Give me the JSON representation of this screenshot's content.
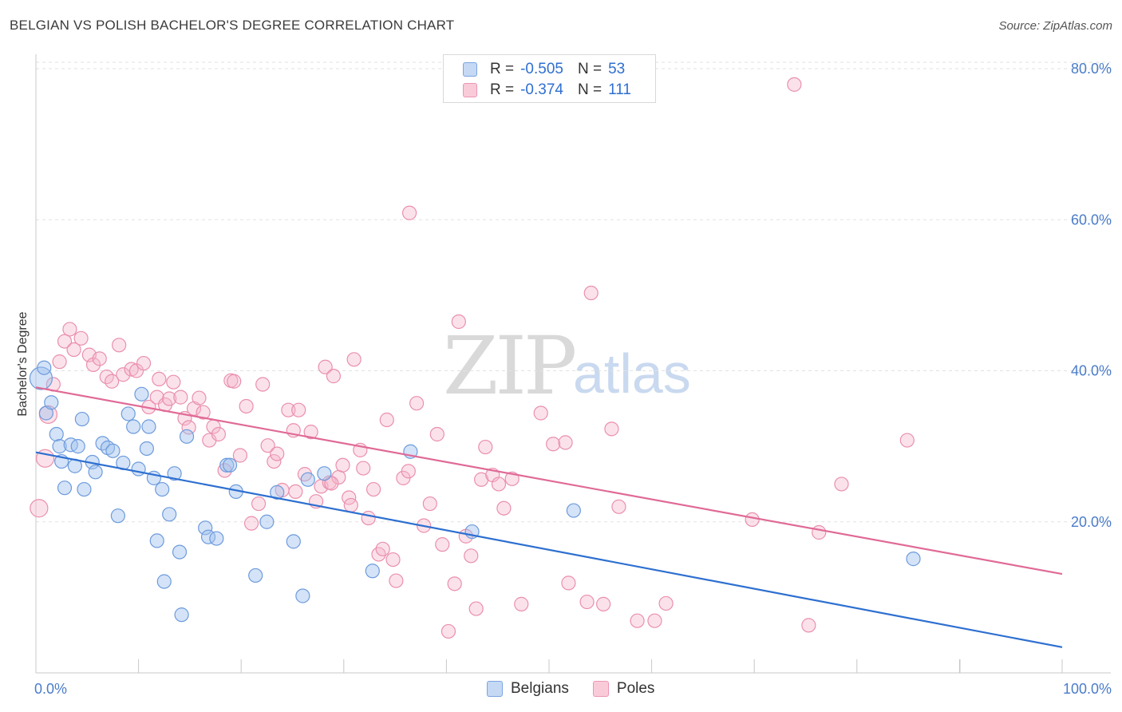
{
  "title": "BELGIAN VS POLISH BACHELOR'S DEGREE CORRELATION CHART",
  "source": "Source: ZipAtlas.com",
  "watermark": {
    "zip": "ZIP",
    "atlas": "atlas"
  },
  "legend": {
    "rows": [
      {
        "r_label": "R =",
        "r_value": "-0.505",
        "n_label": "N =",
        "n_value": "53"
      },
      {
        "r_label": "R =",
        "r_value": "-0.374",
        "n_label": "N =",
        "n_value": "111"
      }
    ]
  },
  "bottom_legend": {
    "belgians": "Belgians",
    "poles": "Poles"
  },
  "chart_data": {
    "type": "scatter",
    "title": "BELGIAN VS POLISH BACHELOR'S DEGREE CORRELATION CHART",
    "xlabel": "",
    "ylabel": "Bachelor's Degree",
    "xlim": [
      0,
      100
    ],
    "ylim": [
      0,
      82
    ],
    "x_tick_labels": [
      "0.0%",
      "100.0%"
    ],
    "y_ticks": [
      20,
      40,
      60,
      80
    ],
    "y_tick_labels": [
      "20.0%",
      "40.0%",
      "60.0%",
      "80.0%"
    ],
    "colors": {
      "belgians": "#5b8fd9",
      "poles": "#e8799f",
      "belgians_line": "#2d6fd0",
      "poles_line": "#e06a96"
    },
    "series": [
      {
        "name": "Belgians",
        "trend": {
          "x": [
            0,
            100
          ],
          "y": [
            29.2,
            3.4
          ]
        },
        "points": [
          [
            0.5,
            39
          ],
          [
            0.8,
            40.4
          ],
          [
            1,
            34.4
          ],
          [
            1.5,
            35.8
          ],
          [
            2,
            31.6
          ],
          [
            2.3,
            30
          ],
          [
            2.8,
            24.5
          ],
          [
            3.4,
            30.2
          ],
          [
            3.8,
            27.4
          ],
          [
            4.1,
            30
          ],
          [
            4.5,
            33.6
          ],
          [
            4.7,
            24.3
          ],
          [
            5.5,
            27.9
          ],
          [
            5.8,
            26.6
          ],
          [
            6.5,
            30.4
          ],
          [
            7,
            29.8
          ],
          [
            7.5,
            29.4
          ],
          [
            8,
            20.8
          ],
          [
            8.5,
            27.8
          ],
          [
            9,
            34.3
          ],
          [
            9.5,
            32.6
          ],
          [
            10,
            27
          ],
          [
            10.3,
            36.9
          ],
          [
            10.8,
            29.7
          ],
          [
            11,
            32.6
          ],
          [
            11.5,
            25.8
          ],
          [
            11.8,
            17.5
          ],
          [
            12.3,
            24.3
          ],
          [
            12.5,
            12.1
          ],
          [
            13,
            21
          ],
          [
            13.5,
            26.4
          ],
          [
            14,
            16
          ],
          [
            14.2,
            7.7
          ],
          [
            14.7,
            31.3
          ],
          [
            16.5,
            19.2
          ],
          [
            16.8,
            18
          ],
          [
            17.6,
            17.8
          ],
          [
            18.6,
            27.5
          ],
          [
            18.9,
            27.5
          ],
          [
            19.5,
            24
          ],
          [
            21.4,
            12.9
          ],
          [
            22.5,
            20
          ],
          [
            23.5,
            23.9
          ],
          [
            25.1,
            17.4
          ],
          [
            26,
            10.2
          ],
          [
            26.5,
            25.6
          ],
          [
            28.1,
            26.4
          ],
          [
            32.8,
            13.5
          ],
          [
            36.5,
            29.3
          ],
          [
            42.5,
            18.7
          ],
          [
            52.4,
            21.5
          ],
          [
            85.5,
            15.1
          ],
          [
            2.5,
            28
          ]
        ]
      },
      {
        "name": "Poles",
        "trend": {
          "x": [
            0,
            100
          ],
          "y": [
            37.8,
            13.1
          ]
        },
        "points": [
          [
            0.3,
            21.8
          ],
          [
            0.9,
            28.4
          ],
          [
            1.2,
            34.2
          ],
          [
            1.7,
            38.2
          ],
          [
            2.3,
            41.2
          ],
          [
            2.8,
            43.9
          ],
          [
            3.3,
            45.5
          ],
          [
            3.7,
            42.8
          ],
          [
            4.4,
            44.3
          ],
          [
            5.2,
            42.1
          ],
          [
            5.6,
            40.8
          ],
          [
            6.2,
            41.6
          ],
          [
            6.9,
            39.2
          ],
          [
            7.4,
            38.6
          ],
          [
            8.1,
            43.4
          ],
          [
            8.5,
            39.5
          ],
          [
            9.3,
            40.2
          ],
          [
            9.8,
            40
          ],
          [
            10.5,
            41
          ],
          [
            11,
            35.2
          ],
          [
            11.8,
            36.5
          ],
          [
            12,
            38.9
          ],
          [
            12.6,
            35.5
          ],
          [
            13,
            36.3
          ],
          [
            13.4,
            38.5
          ],
          [
            14.1,
            36.5
          ],
          [
            14.5,
            33.7
          ],
          [
            14.9,
            32.5
          ],
          [
            15.4,
            35
          ],
          [
            15.9,
            36.4
          ],
          [
            16.3,
            34.5
          ],
          [
            16.9,
            30.8
          ],
          [
            17.3,
            32.6
          ],
          [
            17.8,
            31.6
          ],
          [
            18.4,
            26.8
          ],
          [
            19,
            38.7
          ],
          [
            19.3,
            38.6
          ],
          [
            19.9,
            28.8
          ],
          [
            20.5,
            35.3
          ],
          [
            21,
            19.8
          ],
          [
            21.7,
            22.4
          ],
          [
            22.1,
            38.2
          ],
          [
            22.6,
            30.1
          ],
          [
            23.2,
            28
          ],
          [
            23.5,
            29
          ],
          [
            24,
            24.2
          ],
          [
            24.6,
            34.8
          ],
          [
            25.1,
            32.1
          ],
          [
            25.6,
            34.8
          ],
          [
            26.2,
            26.3
          ],
          [
            26.8,
            31.9
          ],
          [
            27.3,
            22.7
          ],
          [
            27.8,
            24.7
          ],
          [
            28.2,
            40.5
          ],
          [
            28.6,
            25.2
          ],
          [
            29,
            39.3
          ],
          [
            29.5,
            25.9
          ],
          [
            29.9,
            27.5
          ],
          [
            30.5,
            23.2
          ],
          [
            31,
            41.5
          ],
          [
            31.6,
            29.5
          ],
          [
            31.9,
            27.1
          ],
          [
            32.4,
            20.5
          ],
          [
            32.9,
            24.3
          ],
          [
            33.4,
            15.7
          ],
          [
            33.8,
            16.4
          ],
          [
            34.2,
            33.5
          ],
          [
            34.8,
            15
          ],
          [
            35.1,
            12.2
          ],
          [
            35.8,
            25.8
          ],
          [
            36.3,
            26.7
          ],
          [
            37.1,
            35.7
          ],
          [
            37.8,
            19.5
          ],
          [
            38.4,
            22.4
          ],
          [
            39.1,
            31.6
          ],
          [
            39.6,
            17
          ],
          [
            40.2,
            5.5
          ],
          [
            40.8,
            11.8
          ],
          [
            41.2,
            46.5
          ],
          [
            41.9,
            18.1
          ],
          [
            42.4,
            15.5
          ],
          [
            42.9,
            8.5
          ],
          [
            43.4,
            25.6
          ],
          [
            43.8,
            29.9
          ],
          [
            44.5,
            26.2
          ],
          [
            45.1,
            25
          ],
          [
            45.6,
            21.8
          ],
          [
            46.4,
            25.7
          ],
          [
            47.3,
            9.1
          ],
          [
            49.2,
            34.4
          ],
          [
            50.4,
            30.3
          ],
          [
            51.6,
            30.5
          ],
          [
            51.9,
            11.9
          ],
          [
            53.7,
            9.4
          ],
          [
            54.1,
            50.3
          ],
          [
            55.3,
            9.1
          ],
          [
            56.1,
            32.3
          ],
          [
            56.8,
            22
          ],
          [
            58.6,
            6.9
          ],
          [
            60.3,
            6.9
          ],
          [
            61.4,
            9.2
          ],
          [
            69.8,
            20.3
          ],
          [
            73.9,
            77.9
          ],
          [
            75.3,
            6.3
          ],
          [
            76.3,
            18.6
          ],
          [
            78.5,
            25
          ],
          [
            84.9,
            30.8
          ],
          [
            36.4,
            60.9
          ],
          [
            30.7,
            22.2
          ],
          [
            28.8,
            25.1
          ],
          [
            25.3,
            24
          ]
        ]
      }
    ]
  }
}
